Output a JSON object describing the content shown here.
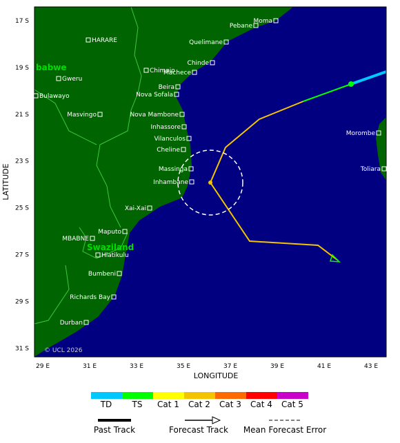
{
  "map": {
    "lat_ticks": [
      "17 S",
      "19 S",
      "21 S",
      "23 S",
      "25 S",
      "27 S",
      "29 S",
      "31 S"
    ],
    "lon_ticks": [
      "29 E",
      "31 E",
      "33 E",
      "35 E",
      "37 E",
      "39 E",
      "41 E",
      "43 E"
    ],
    "x_label": "LONGITUDE",
    "y_label": "LATITUDE",
    "copyright": "© UCL 2026",
    "cities": [
      "Moma",
      "Pebane",
      "HARARE",
      "Quelimane",
      "Chinde",
      "Chimoio",
      "Machece",
      "Gweru",
      "Beira",
      "Nova Sofala",
      "Bulawayo",
      "Masvingo",
      "Nova Mambone",
      "Inhassore",
      "Vilanculos",
      "Cheline",
      "Massinga",
      "Inhambane",
      "Xai-Xai",
      "Maputo",
      "MBABNE",
      "Hlatikulu",
      "Bumbeni",
      "Richards Bay",
      "Durban",
      "Morombe",
      "Toliara"
    ],
    "countries": [
      "babwe",
      "Swaziland"
    ]
  },
  "legend": {
    "categories": [
      "TD",
      "TS",
      "Cat 1",
      "Cat 2",
      "Cat 3",
      "Cat 4",
      "Cat 5"
    ],
    "colors": [
      "#00c8ff",
      "#00ff00",
      "#ffff00",
      "#f5c400",
      "#ff6a00",
      "#ff0000",
      "#c800c8"
    ],
    "lines": [
      "Past Track",
      "Forecast Track",
      "Mean Forecast Error"
    ]
  }
}
